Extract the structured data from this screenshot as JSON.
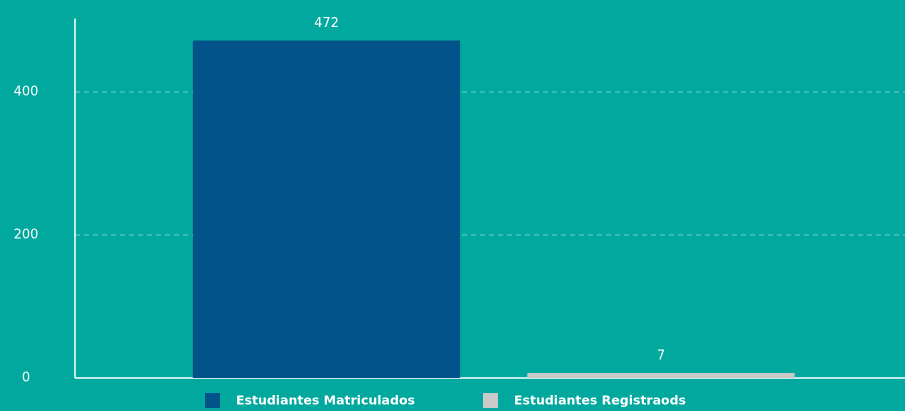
{
  "chart_data": {
    "type": "bar",
    "series": [
      {
        "name": "Estudiantes Matriculados",
        "color": "#01538a",
        "values": [
          472
        ]
      },
      {
        "name": "Estudiantes Registraods",
        "color": "#c9c9c9",
        "values": [
          7
        ]
      }
    ],
    "ylim": [
      0,
      500
    ],
    "yticks": [
      0,
      200,
      400
    ],
    "grid": true,
    "legend": "bottom"
  }
}
